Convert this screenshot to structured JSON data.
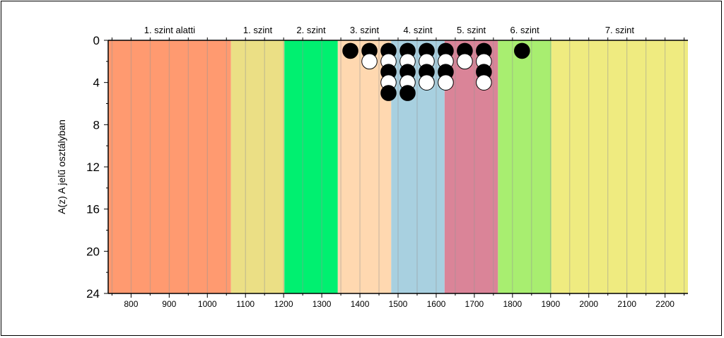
{
  "chart_data": {
    "type": "scatter",
    "title": "",
    "xlabel": "",
    "ylabel": "A(z) A jelű osztályban",
    "xlim": [
      740,
      2260
    ],
    "ylim": [
      24,
      0
    ],
    "xticks": [
      800,
      900,
      1000,
      1100,
      1200,
      1300,
      1400,
      1500,
      1600,
      1700,
      1800,
      1900,
      2000,
      2100,
      2200
    ],
    "yticks": [
      0,
      4,
      8,
      12,
      16,
      20,
      24
    ],
    "grid": "vertical minor lines every 50",
    "bands": [
      {
        "label": "1. szint alatti",
        "from": 740,
        "to": 1062,
        "color": "#FF9A70"
      },
      {
        "label": "1. szint",
        "from": 1062,
        "to": 1202,
        "color": "#EBDF85"
      },
      {
        "label": "2. szint",
        "from": 1202,
        "to": 1342,
        "color": "#00F070"
      },
      {
        "label": "3. szint",
        "from": 1342,
        "to": 1482,
        "color": "#FFD8B0"
      },
      {
        "label": "4. szint",
        "from": 1482,
        "to": 1622,
        "color": "#A8D0E0"
      },
      {
        "label": "5. szint",
        "from": 1622,
        "to": 1762,
        "color": "#DA8498"
      },
      {
        "label": "6. szint",
        "from": 1762,
        "to": 1902,
        "color": "#A8EE70"
      },
      {
        "label": "7. szint",
        "from": 1902,
        "to": 2260,
        "color": "#EFEB80"
      }
    ],
    "points": [
      {
        "x": 1375,
        "y": 1,
        "fill": "black"
      },
      {
        "x": 1425,
        "y": 1,
        "fill": "black"
      },
      {
        "x": 1425,
        "y": 2,
        "fill": "white"
      },
      {
        "x": 1475,
        "y": 1,
        "fill": "black"
      },
      {
        "x": 1475,
        "y": 2,
        "fill": "white"
      },
      {
        "x": 1475,
        "y": 3,
        "fill": "black"
      },
      {
        "x": 1475,
        "y": 4,
        "fill": "white"
      },
      {
        "x": 1475,
        "y": 5,
        "fill": "black"
      },
      {
        "x": 1525,
        "y": 1,
        "fill": "black"
      },
      {
        "x": 1525,
        "y": 2,
        "fill": "white"
      },
      {
        "x": 1525,
        "y": 3,
        "fill": "black"
      },
      {
        "x": 1525,
        "y": 4,
        "fill": "white"
      },
      {
        "x": 1525,
        "y": 5,
        "fill": "black"
      },
      {
        "x": 1575,
        "y": 1,
        "fill": "black"
      },
      {
        "x": 1575,
        "y": 2,
        "fill": "white"
      },
      {
        "x": 1575,
        "y": 3,
        "fill": "black"
      },
      {
        "x": 1575,
        "y": 4,
        "fill": "white"
      },
      {
        "x": 1625,
        "y": 1,
        "fill": "black"
      },
      {
        "x": 1625,
        "y": 2,
        "fill": "white"
      },
      {
        "x": 1625,
        "y": 3,
        "fill": "black"
      },
      {
        "x": 1625,
        "y": 4,
        "fill": "white"
      },
      {
        "x": 1675,
        "y": 1,
        "fill": "black"
      },
      {
        "x": 1675,
        "y": 2,
        "fill": "white"
      },
      {
        "x": 1725,
        "y": 1,
        "fill": "black"
      },
      {
        "x": 1725,
        "y": 2,
        "fill": "white"
      },
      {
        "x": 1725,
        "y": 3,
        "fill": "black"
      },
      {
        "x": 1725,
        "y": 4,
        "fill": "white"
      },
      {
        "x": 1825,
        "y": 1,
        "fill": "black"
      }
    ]
  }
}
